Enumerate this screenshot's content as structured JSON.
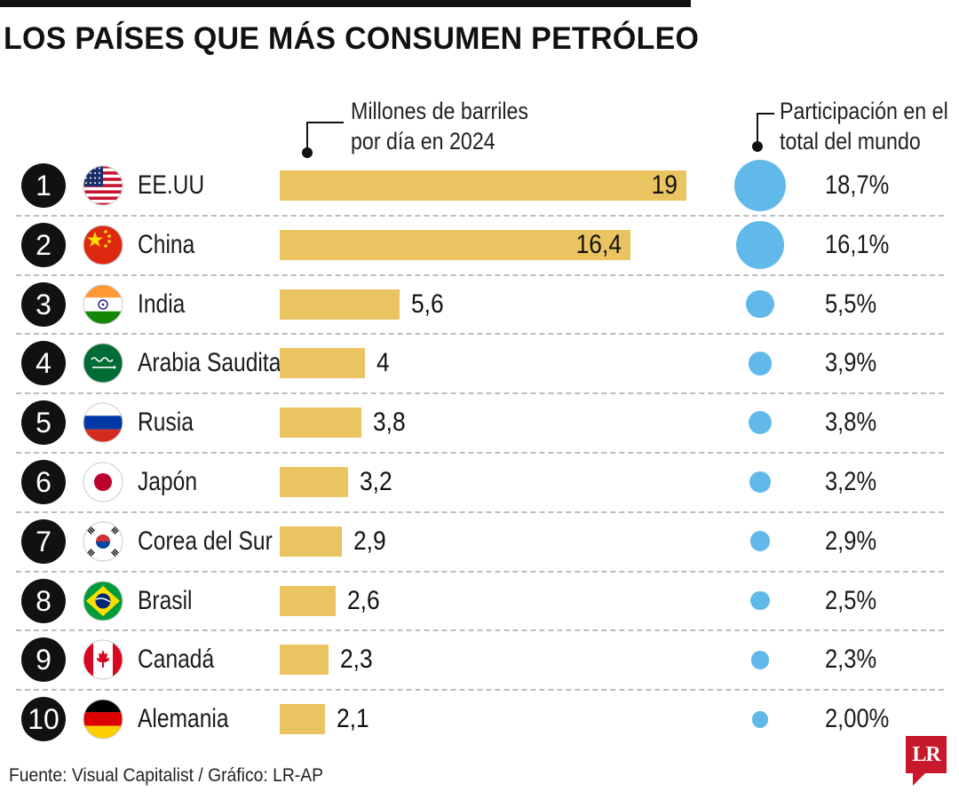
{
  "title": "LOS PAÍSES QUE MÁS CONSUMEN PETRÓLEO",
  "legend": {
    "barras_line1": "Millones de barriles",
    "barras_line2": "por día en 2024",
    "participacion_line1": "Participación en el",
    "participacion_line2": "total del mundo"
  },
  "source": "Fuente: Visual Capitalist / Gráfico: LR-AP",
  "logo_text": "LR",
  "colors": {
    "bar": "#ebc462",
    "bubble": "#61b9ea",
    "rank_badge": "#111111",
    "logo": "#c8182b"
  },
  "chart_data": {
    "type": "bar",
    "title": "LOS PAÍSES QUE MÁS CONSUMEN PETRÓLEO",
    "xlabel": "Millones de barriles por día en 2024",
    "ylabel": "",
    "xlim": [
      0,
      19
    ],
    "categories": [
      "EE.UU",
      "China",
      "India",
      "Arabia Saudita",
      "Rusia",
      "Japón",
      "Corea del Sur",
      "Brasil",
      "Canadá",
      "Alemania"
    ],
    "ranks": [
      "1",
      "2",
      "3",
      "4",
      "5",
      "6",
      "7",
      "8",
      "9",
      "10"
    ],
    "flags": [
      "us-flag-icon",
      "china-flag-icon",
      "india-flag-icon",
      "saudi-arabia-flag-icon",
      "russia-flag-icon",
      "japan-flag-icon",
      "south-korea-flag-icon",
      "brazil-flag-icon",
      "canada-flag-icon",
      "germany-flag-icon"
    ],
    "series": [
      {
        "name": "Millones de barriles por día en 2024",
        "values": [
          19,
          16.4,
          5.6,
          4,
          3.8,
          3.2,
          2.9,
          2.6,
          2.3,
          2.1
        ],
        "labels": [
          "19",
          "16,4",
          "5,6",
          "4",
          "3,8",
          "3,2",
          "2,9",
          "2,6",
          "2,3",
          "2,1"
        ]
      },
      {
        "name": "Participación en el total del mundo",
        "values": [
          18.7,
          16.1,
          5.5,
          3.9,
          3.8,
          3.2,
          2.9,
          2.5,
          2.3,
          2.0
        ],
        "labels": [
          "18,7%",
          "16,1%",
          "5,5%",
          "3,9%",
          "3,8%",
          "3,2%",
          "2,9%",
          "2,5%",
          "2,3%",
          "2,00%"
        ]
      }
    ]
  }
}
